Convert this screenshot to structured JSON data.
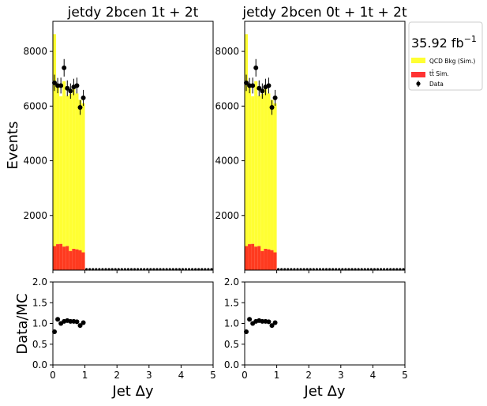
{
  "figure": {
    "shared_ylabel_top": "Events",
    "shared_ylabel_bottom": "Data/MC",
    "lumi_text": "35.92 fb",
    "lumi_sup": "−1"
  },
  "legend": {
    "placement": "right",
    "items": [
      {
        "label": "QCD Bkg (Sim.)",
        "color": "#ffff33",
        "kind": "fill"
      },
      {
        "label": "tt̄ Sim.",
        "color": "#ff3333",
        "kind": "fill"
      },
      {
        "label": "Data",
        "color": "#000000",
        "kind": "marker"
      }
    ]
  },
  "colors": {
    "qcd": "#ffff33",
    "ttbar": "#ff3a1f",
    "data": "#000000"
  },
  "chart_data": [
    {
      "type": "bar",
      "title": "jetdy  2bcen 1t + 2t",
      "xlabel": "Jet Δy",
      "ylabel": "Events",
      "xlim": [
        0,
        5
      ],
      "ylim": [
        0,
        9100
      ],
      "yticks": [
        2000,
        4000,
        6000,
        8000
      ],
      "xticks": [
        0,
        1,
        2,
        3,
        4,
        5
      ],
      "bin_width": 0.1,
      "bin_low_edges": [
        0.0,
        0.1,
        0.2,
        0.3,
        0.4,
        0.5,
        0.6,
        0.7,
        0.8,
        0.9
      ],
      "series": [
        {
          "name": "QCD Bkg (Sim.)",
          "values": [
            7750,
            5750,
            5400,
            6050,
            5500,
            5750,
            5850,
            5700,
            5500,
            5450
          ]
        },
        {
          "name": "tt̄ Sim.",
          "values": [
            880,
            950,
            960,
            860,
            880,
            700,
            780,
            760,
            730,
            650
          ]
        }
      ],
      "data_points": {
        "x": [
          0.05,
          0.15,
          0.25,
          0.35,
          0.45,
          0.55,
          0.65,
          0.75,
          0.85,
          0.95
        ],
        "y": [
          6850,
          6750,
          6750,
          7400,
          6650,
          6550,
          6700,
          6750,
          5950,
          6300
        ],
        "err": [
          300,
          280,
          290,
          320,
          290,
          280,
          300,
          290,
          270,
          290
        ]
      },
      "ratio": {
        "ylabel": "Data/MC",
        "ylim": [
          0,
          2
        ],
        "yticks": [
          0.0,
          0.5,
          1.0,
          1.5,
          2.0
        ],
        "x": [
          0.05,
          0.15,
          0.25,
          0.35,
          0.45,
          0.55,
          0.65,
          0.75,
          0.85,
          0.95
        ],
        "y": [
          0.8,
          1.1,
          1.0,
          1.05,
          1.07,
          1.05,
          1.05,
          1.04,
          0.95,
          1.02
        ]
      }
    },
    {
      "type": "bar",
      "title": "jetdy  2bcen 0t + 1t + 2t",
      "xlabel": "Jet Δy",
      "ylabel": "",
      "xlim": [
        0,
        5
      ],
      "ylim": [
        0,
        9100
      ],
      "yticks": [
        2000,
        4000,
        6000,
        8000
      ],
      "xticks": [
        0,
        1,
        2,
        3,
        4,
        5
      ],
      "bin_width": 0.1,
      "bin_low_edges": [
        0.0,
        0.1,
        0.2,
        0.3,
        0.4,
        0.5,
        0.6,
        0.7,
        0.8,
        0.9
      ],
      "series": [
        {
          "name": "QCD Bkg (Sim.)",
          "values": [
            7750,
            5750,
            5400,
            6050,
            5500,
            5750,
            5850,
            5700,
            5500,
            5450
          ]
        },
        {
          "name": "tt̄ Sim.",
          "values": [
            880,
            950,
            960,
            860,
            880,
            700,
            780,
            760,
            730,
            650
          ]
        }
      ],
      "data_points": {
        "x": [
          0.05,
          0.15,
          0.25,
          0.35,
          0.45,
          0.55,
          0.65,
          0.75,
          0.85,
          0.95
        ],
        "y": [
          6850,
          6750,
          6750,
          7400,
          6650,
          6550,
          6700,
          6750,
          5950,
          6300
        ],
        "err": [
          300,
          280,
          290,
          320,
          290,
          280,
          300,
          290,
          270,
          290
        ]
      },
      "ratio": {
        "ylabel": "",
        "ylim": [
          0,
          2
        ],
        "yticks": [
          0.0,
          0.5,
          1.0,
          1.5,
          2.0
        ],
        "x": [
          0.05,
          0.15,
          0.25,
          0.35,
          0.45,
          0.55,
          0.65,
          0.75,
          0.85,
          0.95
        ],
        "y": [
          0.8,
          1.1,
          1.0,
          1.05,
          1.07,
          1.05,
          1.05,
          1.04,
          0.95,
          1.02
        ]
      }
    }
  ]
}
